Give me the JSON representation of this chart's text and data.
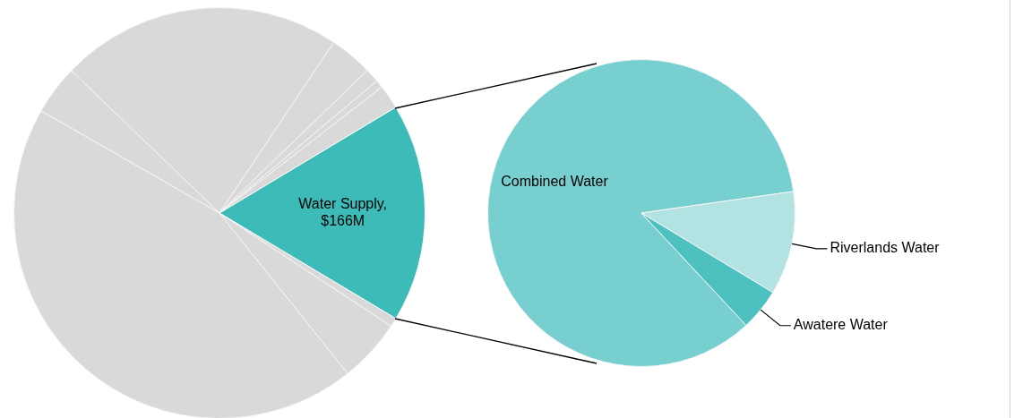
{
  "chart_data": [
    {
      "type": "pie",
      "categories": [
        "Water Supply, $166M",
        null,
        null,
        null,
        null,
        null,
        null,
        null,
        null,
        null
      ],
      "values": [
        17.2,
        0.7,
        5.0,
        44.0,
        3.9,
        22.2,
        3.4,
        1.1,
        0.6,
        1.9
      ],
      "colors": [
        "#3dbbb9",
        "#d9d9d9",
        "#d9d9d9",
        "#d9d9d9",
        "#d9d9d9",
        "#d9d9d9",
        "#d9d9d9",
        "#d9d9d9",
        "#d9d9d9",
        "#d9d9d9"
      ]
    },
    {
      "type": "pie",
      "categories": [
        "Combined Water",
        "Riverlands Water",
        "Awatere Water"
      ],
      "values": [
        84.7,
        10.9,
        4.4
      ],
      "colors": [
        "#77cfcf",
        "#b2e3e2",
        "#4dc0c0"
      ]
    }
  ]
}
